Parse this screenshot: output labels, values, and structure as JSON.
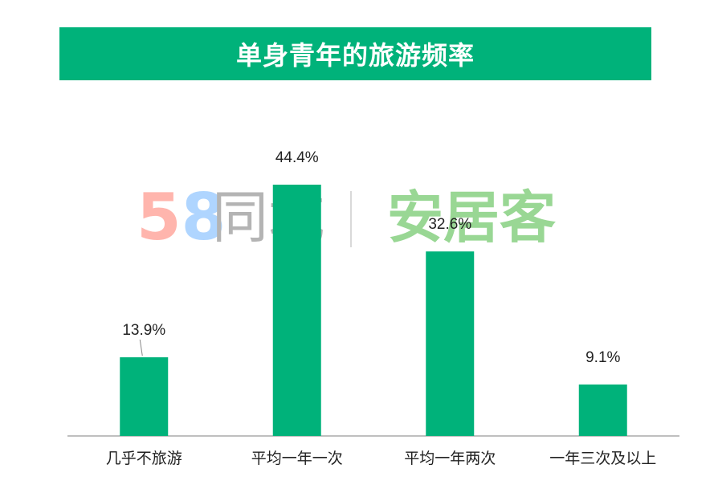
{
  "title": "单身青年的旅游频率",
  "watermark": {
    "digit5": "5",
    "digit8": "8",
    "tongcheng": "同城",
    "anjuke": "安居客"
  },
  "colors": {
    "accent": "#00b27a",
    "bar": "#00b27a",
    "axis": "#aaaaaa",
    "text": "#222222"
  },
  "chart_data": {
    "type": "bar",
    "title": "单身青年的旅游频率",
    "categories": [
      "几乎不旅游",
      "平均一年一次",
      "平均一年两次",
      "一年三次及以上"
    ],
    "values": [
      13.9,
      44.4,
      32.6,
      9.1
    ],
    "value_labels": [
      "13.9%",
      "44.4%",
      "32.6%",
      "9.1%"
    ],
    "unit": "%",
    "ylim": [
      0,
      50
    ],
    "xlabel": "",
    "ylabel": "",
    "grid": false,
    "legend": "none"
  }
}
